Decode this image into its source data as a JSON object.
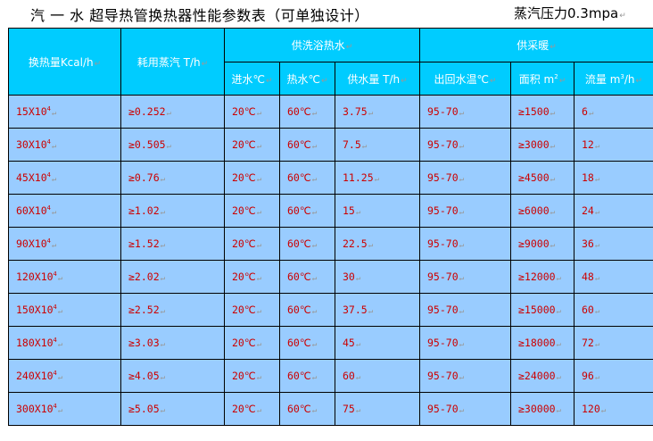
{
  "title": "汽 一 水 超导热管换热器性能参数表（可单独设计）",
  "pressure": "蒸汽压力0.3mpa",
  "colors": {
    "header_bg": "#00CCFF",
    "body_bg": "#99CCFF",
    "body_text": "#CC0000",
    "header_text": "#FFFFFF"
  },
  "headers": {
    "heat": "换热量Kcal/h",
    "steam": "耗用蒸汽 T/h",
    "bath_group": "供洗浴热水",
    "heating_group": "供采暖",
    "inlet": "进水℃",
    "hot": "热水℃",
    "supply": "供水量 T/h",
    "return_temp": "出回水温℃",
    "area": "面积 m",
    "area_sup": "2",
    "flow": "流量 m",
    "flow_sup": "3",
    "flow_unit": "/h"
  },
  "rows": [
    {
      "heat": "15X10",
      "exp": "4",
      "steam": "≥0.252",
      "inlet": "20℃",
      "hot": "60℃",
      "supply": "3.75",
      "ret": "95-70",
      "area": "≥1500",
      "flow": "6"
    },
    {
      "heat": "30X10",
      "exp": "4",
      "steam": "≥0.505",
      "inlet": "20℃",
      "hot": "60℃",
      "supply": "7.5",
      "ret": "95-70",
      "area": "≥3000",
      "flow": "12"
    },
    {
      "heat": "45X10",
      "exp": "4",
      "steam": "≥0.76",
      "inlet": "20℃",
      "hot": "60℃",
      "supply": "11.25",
      "ret": "95-70",
      "area": "≥4500",
      "flow": "18"
    },
    {
      "heat": "60X10",
      "exp": "4",
      "steam": "≥1.02",
      "inlet": "20℃",
      "hot": "60℃",
      "supply": "15",
      "ret": "95-70",
      "area": "≥6000",
      "flow": "24"
    },
    {
      "heat": "90X10",
      "exp": "4",
      "steam": "≥1.52",
      "inlet": "20℃",
      "hot": "60℃",
      "supply": "22.5",
      "ret": "95-70",
      "area": "≥9000",
      "flow": "36"
    },
    {
      "heat": "120X10",
      "exp": "4",
      "steam": "≥2.02",
      "inlet": "20℃",
      "hot": "60℃",
      "supply": "30",
      "ret": "95-70",
      "area": "≥12000",
      "flow": "48"
    },
    {
      "heat": "150X10",
      "exp": "4",
      "steam": "≥2.52",
      "inlet": "20℃",
      "hot": "60℃",
      "supply": "37.5",
      "ret": "95-70",
      "area": "≥15000",
      "flow": "60"
    },
    {
      "heat": "180X10",
      "exp": "4",
      "steam": "≥3.03",
      "inlet": "20℃",
      "hot": "60℃",
      "supply": "45",
      "ret": "95-70",
      "area": "≥18000",
      "flow": "72"
    },
    {
      "heat": "240X10",
      "exp": "4",
      "steam": "≥4.05",
      "inlet": "20℃",
      "hot": "60℃",
      "supply": "60",
      "ret": "95-70",
      "area": "≥24000",
      "flow": "96"
    },
    {
      "heat": "300X10",
      "exp": "4",
      "steam": "≥5.05",
      "inlet": "20℃",
      "hot": "60℃",
      "supply": "75",
      "ret": "95-70",
      "area": "≥30000",
      "flow": "120"
    }
  ]
}
